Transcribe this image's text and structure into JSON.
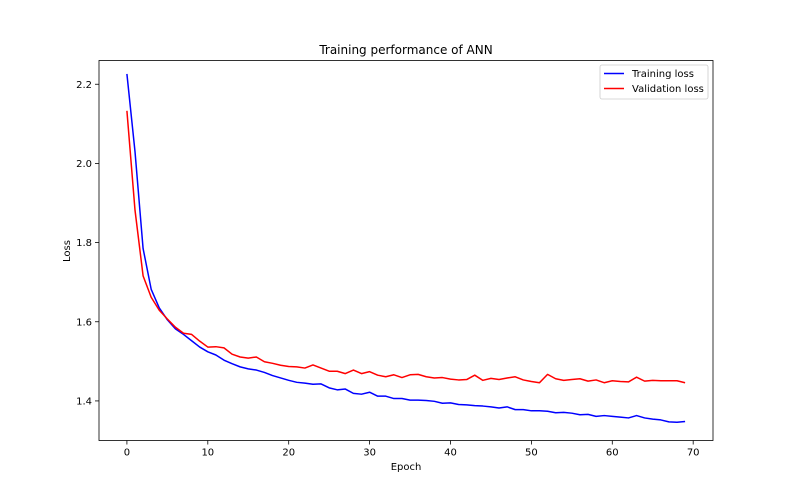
{
  "chart_data": {
    "type": "line",
    "title": "Training performance of ANN",
    "xlabel": "Epoch",
    "ylabel": "Loss",
    "xlim": [
      -3.45,
      72.45
    ],
    "ylim": [
      1.3,
      2.26
    ],
    "xticks": [
      0,
      10,
      20,
      30,
      40,
      50,
      60,
      70
    ],
    "yticks": [
      1.4,
      1.6,
      1.8,
      2.0,
      2.2
    ],
    "ytick_labels": [
      "1.4",
      "1.6",
      "1.8",
      "2.0",
      "2.2"
    ],
    "grid": false,
    "legend_position": "top-right",
    "series": [
      {
        "name": "Training loss",
        "color": "#0000ff",
        "values": [
          2.226,
          2.03,
          1.785,
          1.682,
          1.635,
          1.605,
          1.582,
          1.568,
          1.552,
          1.536,
          1.524,
          1.516,
          1.503,
          1.494,
          1.486,
          1.481,
          1.478,
          1.472,
          1.464,
          1.458,
          1.452,
          1.447,
          1.445,
          1.442,
          1.443,
          1.433,
          1.428,
          1.43,
          1.419,
          1.417,
          1.422,
          1.412,
          1.412,
          1.406,
          1.406,
          1.402,
          1.402,
          1.401,
          1.399,
          1.394,
          1.395,
          1.391,
          1.39,
          1.388,
          1.387,
          1.385,
          1.382,
          1.385,
          1.378,
          1.378,
          1.375,
          1.375,
          1.374,
          1.37,
          1.371,
          1.369,
          1.365,
          1.366,
          1.361,
          1.363,
          1.361,
          1.359,
          1.357,
          1.363,
          1.357,
          1.354,
          1.352,
          1.347,
          1.346,
          1.348
        ]
      },
      {
        "name": "Validation loss",
        "color": "#ff0000",
        "values": [
          2.133,
          1.882,
          1.716,
          1.662,
          1.629,
          1.607,
          1.586,
          1.571,
          1.568,
          1.551,
          1.536,
          1.537,
          1.534,
          1.518,
          1.511,
          1.508,
          1.511,
          1.499,
          1.495,
          1.49,
          1.487,
          1.486,
          1.483,
          1.491,
          1.483,
          1.475,
          1.475,
          1.469,
          1.478,
          1.469,
          1.474,
          1.465,
          1.461,
          1.466,
          1.459,
          1.466,
          1.467,
          1.461,
          1.458,
          1.459,
          1.455,
          1.453,
          1.454,
          1.465,
          1.452,
          1.457,
          1.454,
          1.458,
          1.461,
          1.453,
          1.449,
          1.446,
          1.467,
          1.456,
          1.452,
          1.454,
          1.456,
          1.45,
          1.453,
          1.446,
          1.451,
          1.449,
          1.448,
          1.46,
          1.45,
          1.452,
          1.451,
          1.451,
          1.451,
          1.446
        ]
      }
    ]
  }
}
